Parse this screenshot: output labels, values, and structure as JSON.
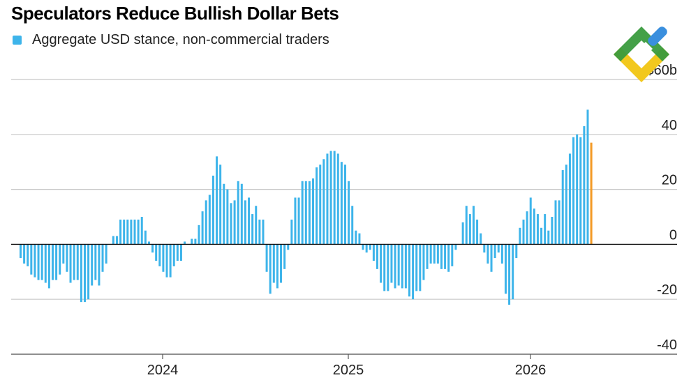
{
  "title": "Speculators Reduce Bullish Dollar Bets",
  "legend": {
    "label": "Aggregate USD stance, non-commercial traders"
  },
  "colors": {
    "bar": "#3db4ea",
    "highlight": "#f39a25",
    "zero_line": "#111111",
    "grid": "#c8c8c8"
  },
  "logo": {
    "icon": "brand-logo-icon"
  },
  "chart_data": {
    "type": "bar",
    "title": "Speculators Reduce Bullish Dollar Bets",
    "ylabel": "",
    "y_unit_label": "$60b",
    "ylim": [
      -40,
      60
    ],
    "yticks": [
      "$60b",
      "40",
      "20",
      "0",
      "-20",
      "-40"
    ],
    "xticks": [
      "2024",
      "2025",
      "2026"
    ],
    "grid": true,
    "legend_position": "top-left",
    "series": [
      {
        "name": "Aggregate USD stance, non-commercial traders",
        "values": [
          -5,
          -7,
          -8,
          -11,
          -12,
          -13,
          -13,
          -14,
          -16,
          -13,
          -13,
          -11,
          -7,
          -10,
          -14,
          -13,
          -13,
          -21,
          -21,
          -20,
          -15,
          -13,
          -15,
          -10,
          -7,
          0,
          3,
          3,
          9,
          9,
          9,
          9,
          9,
          9,
          10,
          5,
          1,
          -3,
          -6,
          -8,
          -10,
          -12,
          -12,
          -8,
          -6,
          -6,
          1,
          0,
          2,
          2,
          7,
          12,
          16,
          18,
          25,
          32,
          29,
          22,
          20,
          15,
          16,
          23,
          22,
          16,
          17,
          11,
          14,
          9,
          9,
          -10,
          -18,
          -14,
          -16,
          -14,
          -9,
          -2,
          9,
          17,
          17,
          23,
          23,
          23,
          24,
          28,
          29,
          31,
          33,
          34,
          34,
          33,
          30,
          29,
          23,
          14,
          5,
          4,
          -2,
          -3,
          -2,
          -6,
          -9,
          -14,
          -17,
          -17,
          -14,
          -16,
          -15,
          -16,
          -16,
          -19,
          -20,
          -17,
          -17,
          -13,
          -9,
          -7,
          -7,
          -7,
          -9,
          -9,
          -10,
          -8,
          -2,
          0,
          8,
          14,
          11,
          14,
          9,
          4,
          -3,
          -7,
          -10,
          -5,
          -3,
          -7,
          -18,
          -22,
          -20,
          -5,
          6,
          9,
          12,
          17,
          13,
          11,
          6,
          11,
          5,
          10,
          16,
          16,
          27,
          29,
          33,
          39,
          40,
          39,
          43,
          49,
          37
        ]
      }
    ],
    "highlight_last_bar": true
  }
}
